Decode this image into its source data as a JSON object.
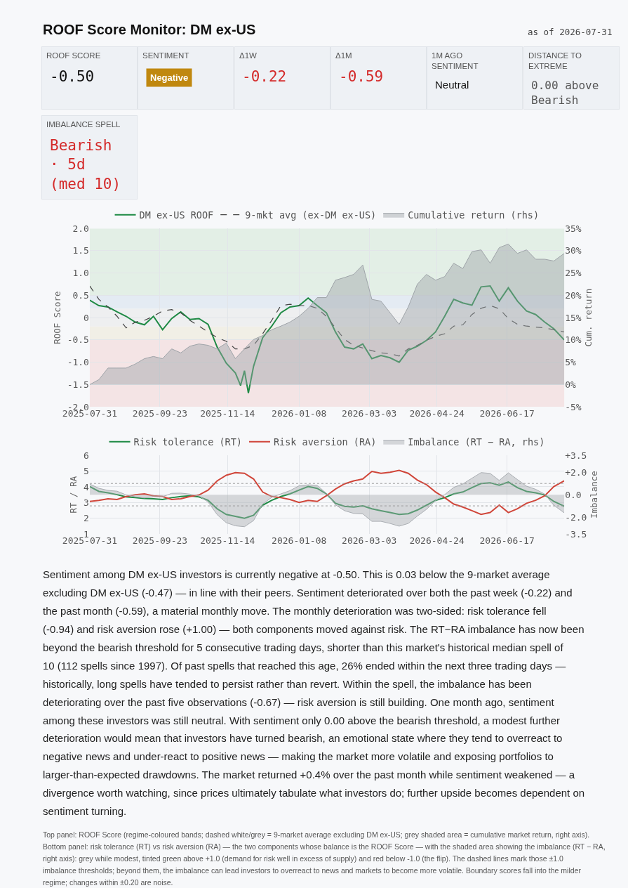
{
  "chart_data": [
    {
      "type": "other",
      "title": "ROOF Score Monitor: DM ex-US",
      "subtitle": "as of 2026-07-31",
      "annotations": [
        "ROOF SCORE",
        "-0.50",
        "SENTIMENT",
        "Negative",
        "Δ1W",
        "-0.22",
        "Δ1M",
        "-0.59",
        "1M AGO SENTIMENT",
        "Neutral",
        "DISTANCE TO EXTREME",
        "0.00 above Bearish",
        "IMBALANCE SPELL",
        "Bearish · 5d (med 10)"
      ]
    },
    {
      "type": "line",
      "legend": "top",
      "grid": true,
      "ylabel": "ROOF Score",
      "y2label": "Cum. return",
      "x": [
        "2025-07-31",
        "2025-08-07",
        "2025-08-14",
        "2025-08-21",
        "2025-08-28",
        "2025-09-04",
        "2025-09-11",
        "2025-09-18",
        "2025-09-25",
        "2025-10-02",
        "2025-10-09",
        "2025-10-16",
        "2025-10-23",
        "2025-10-30",
        "2025-11-06",
        "2025-11-13",
        "2025-11-20",
        "2025-11-27",
        "2025-12-04",
        "2025-12-11",
        "2025-12-18",
        "2025-12-25",
        "2026-01-01",
        "2026-01-08",
        "2026-01-15",
        "2026-01-22",
        "2026-01-29",
        "2026-02-05",
        "2026-02-12",
        "2026-02-19",
        "2026-02-26",
        "2026-03-05",
        "2026-03-12",
        "2026-03-19",
        "2026-03-26",
        "2026-04-02",
        "2026-04-09",
        "2026-04-16",
        "2026-04-23",
        "2026-04-30",
        "2026-05-07",
        "2026-05-14",
        "2026-05-21",
        "2026-05-28",
        "2026-06-04",
        "2026-06-11",
        "2026-06-18",
        "2026-06-25",
        "2026-07-02",
        "2026-07-09",
        "2026-07-16",
        "2026-07-23",
        "2026-07-31"
      ],
      "xlim": [
        "2025-07-31",
        "2026-07-31"
      ],
      "xticks": [
        "2025-07-31",
        "2025-09-23",
        "2025-11-14",
        "2026-01-08",
        "2026-03-03",
        "2026-04-24",
        "2026-06-17"
      ],
      "ylim": [
        -2.0,
        2.0
      ],
      "yticks": [
        {
          "value": 2.0,
          "label": "2.0"
        },
        1.5,
        {
          "value": 1.0,
          "label": "1.0"
        },
        0.5,
        0,
        -0.5,
        {
          "value": -1.0,
          "label": "-1.0"
        },
        -1.5,
        {
          "value": -2.0,
          "label": "-2.0"
        }
      ],
      "y2lim": [
        -5,
        35
      ],
      "y2ticks": [
        {
          "value": 35,
          "label": "35%"
        },
        {
          "value": 30,
          "label": "30%"
        },
        {
          "value": 25,
          "label": "25%"
        },
        {
          "value": 20,
          "label": "20%"
        },
        {
          "value": 15,
          "label": "15%"
        },
        {
          "value": 10,
          "label": "10%"
        },
        {
          "value": 5,
          "label": "5%"
        },
        {
          "value": 0,
          "label": "0%"
        },
        {
          "value": -5,
          "label": "-5%"
        }
      ],
      "bands": [
        {
          "axis": "y",
          "from": 0.5,
          "to": 2.0,
          "color": "#e3efe6"
        },
        {
          "axis": "y",
          "from": 0.2,
          "to": 0.5,
          "color": "#e4ebf3"
        },
        {
          "axis": "y",
          "from": -0.2,
          "to": 0.2,
          "color": "#eeeff0"
        },
        {
          "axis": "y",
          "from": -0.5,
          "to": -0.2,
          "color": "#f1efe6"
        },
        {
          "axis": "y",
          "from": -2.0,
          "to": -0.5,
          "color": "#f4e4e5"
        }
      ],
      "series": [
        {
          "name": "DM ex-US ROOF",
          "color": "#1e8a44",
          "x": [
            "2025-07-31",
            "2025-08-07",
            "2025-08-14",
            "2025-08-21",
            "2025-08-28",
            "2025-09-04",
            "2025-09-11",
            "2025-09-18",
            "2025-09-25",
            "2025-10-02",
            "2025-10-09",
            "2025-10-16",
            "2025-10-23",
            "2025-10-30",
            "2025-11-06",
            "2025-11-13",
            "2025-11-20",
            "2025-11-24",
            "2025-11-27",
            "2025-11-30",
            "2025-12-04",
            "2025-12-11",
            "2025-12-18",
            "2025-12-25",
            "2026-01-01",
            "2026-01-08",
            "2026-01-15",
            "2026-01-22",
            "2026-01-29",
            "2026-02-05",
            "2026-02-12",
            "2026-02-19",
            "2026-02-26",
            "2026-03-05",
            "2026-03-12",
            "2026-03-19",
            "2026-03-26",
            "2026-04-02",
            "2026-04-09",
            "2026-04-16",
            "2026-04-23",
            "2026-04-30",
            "2026-05-07",
            "2026-05-14",
            "2026-05-21",
            "2026-05-28",
            "2026-06-04",
            "2026-06-11",
            "2026-06-18",
            "2026-06-25",
            "2026-07-02",
            "2026-07-09",
            "2026-07-16",
            "2026-07-23",
            "2026-07-31"
          ],
          "values": [
            0.39,
            0.27,
            0.24,
            0.13,
            0.03,
            -0.1,
            -0.16,
            0.03,
            -0.27,
            -0.02,
            0.13,
            -0.04,
            -0.02,
            -0.15,
            -0.66,
            -1.02,
            -1.24,
            -1.52,
            -1.19,
            -1.69,
            -1.09,
            -0.45,
            -0.19,
            0.11,
            0.24,
            0.27,
            0.44,
            0.27,
            0.11,
            -0.32,
            -0.66,
            -0.7,
            -0.59,
            -0.92,
            -0.85,
            -0.9,
            -1.0,
            -0.73,
            -0.64,
            -0.51,
            -0.32,
            0.03,
            0.41,
            0.33,
            0.28,
            0.69,
            0.71,
            0.37,
            0.67,
            0.37,
            0.15,
            0.07,
            -0.1,
            -0.25,
            -0.5
          ]
        },
        {
          "name": "9-mkt avg (ex-DM ex-US)",
          "color": "#444444",
          "line_style": "dashed",
          "values": [
            0.71,
            0.41,
            0.24,
            0.03,
            -0.23,
            -0.1,
            -0.06,
            0.03,
            0.15,
            0.18,
            0.11,
            -0.06,
            -0.19,
            -0.32,
            -0.45,
            -0.53,
            -0.7,
            -0.7,
            -0.62,
            -0.36,
            -0.06,
            0.27,
            0.3,
            0.27,
            0.27,
            0.21,
            0.03,
            -0.23,
            -0.49,
            -0.62,
            -0.68,
            -0.74,
            -0.79,
            -0.81,
            -0.86,
            -0.7,
            -0.62,
            -0.51,
            -0.42,
            -0.36,
            -0.19,
            -0.16,
            0.07,
            0.21,
            0.27,
            0.2,
            -0.02,
            -0.15,
            -0.19,
            -0.21,
            -0.23,
            -0.27,
            -0.32
          ]
        },
        {
          "name": "Cumulative return (rhs)",
          "color": "#9ea3a8",
          "type": "area",
          "axis": "y2",
          "values": [
            0.0,
            1.1,
            3.7,
            3.7,
            3.7,
            4.6,
            5.8,
            6.3,
            5.8,
            8.0,
            7.1,
            8.6,
            9.1,
            8.8,
            8.0,
            9.3,
            5.8,
            8.0,
            10.1,
            11.0,
            12.3,
            13.1,
            14.0,
            15.3,
            17.1,
            19.5,
            19.5,
            23.4,
            24.0,
            24.7,
            26.8,
            19.1,
            18.7,
            16.1,
            13.5,
            17.4,
            22.5,
            24.7,
            23.4,
            24.2,
            27.2,
            26.0,
            29.8,
            30.2,
            27.2,
            30.7,
            31.5,
            29.4,
            30.2,
            28.1,
            28.1,
            27.7,
            29.4
          ]
        }
      ]
    },
    {
      "type": "line",
      "legend": "top",
      "grid": true,
      "ylabel": "RT / RA",
      "y2label": "Imbalance",
      "x": [
        "2025-07-31",
        "2025-08-07",
        "2025-08-14",
        "2025-08-21",
        "2025-08-28",
        "2025-09-04",
        "2025-09-11",
        "2025-09-18",
        "2025-09-25",
        "2025-10-02",
        "2025-10-09",
        "2025-10-16",
        "2025-10-23",
        "2025-10-30",
        "2025-11-06",
        "2025-11-13",
        "2025-11-20",
        "2025-11-27",
        "2025-12-04",
        "2025-12-11",
        "2025-12-18",
        "2025-12-25",
        "2026-01-01",
        "2026-01-08",
        "2026-01-15",
        "2026-01-22",
        "2026-01-29",
        "2026-02-05",
        "2026-02-12",
        "2026-02-19",
        "2026-02-26",
        "2026-03-05",
        "2026-03-12",
        "2026-03-19",
        "2026-03-26",
        "2026-04-02",
        "2026-04-09",
        "2026-04-16",
        "2026-04-23",
        "2026-04-30",
        "2026-05-07",
        "2026-05-14",
        "2026-05-21",
        "2026-05-28",
        "2026-06-04",
        "2026-06-11",
        "2026-06-18",
        "2026-06-25",
        "2026-07-02",
        "2026-07-09",
        "2026-07-16",
        "2026-07-23",
        "2026-07-31"
      ],
      "xlim": [
        "2025-07-31",
        "2026-07-31"
      ],
      "xticks": [
        "2025-07-31",
        "2025-09-23",
        "2025-11-14",
        "2026-01-08",
        "2026-03-03",
        "2026-04-24",
        "2026-06-17"
      ],
      "ylim": [
        1,
        6
      ],
      "yticks": [
        1,
        2,
        3,
        4,
        5,
        6
      ],
      "y2lim": [
        -3.5,
        3.5
      ],
      "y2ticks": [
        {
          "value": 3.5,
          "label": "+3.5"
        },
        {
          "value": 2.0,
          "label": "+2.0"
        },
        {
          "value": 0.0,
          "label": "0.0"
        },
        {
          "value": -2.0,
          "label": "-2.0"
        },
        {
          "value": -3.5,
          "label": "-3.5"
        }
      ],
      "ref_lines": [
        {
          "axis": "y2",
          "value": 1.0,
          "color": "#999999",
          "line_style": "dotted"
        },
        {
          "axis": "y2",
          "value": -1.0,
          "color": "#999999",
          "line_style": "dotted"
        }
      ],
      "series": [
        {
          "name": "Imbalance (RT − RA, rhs)",
          "color": "#a9adb2",
          "type": "area",
          "axis": "y2",
          "values": [
            0.95,
            0.57,
            0.38,
            0.31,
            -0.02,
            -0.19,
            -0.29,
            -0.19,
            -0.19,
            0.12,
            0.14,
            0.05,
            -0.12,
            -0.65,
            -1.78,
            -2.5,
            -2.78,
            -2.86,
            -2.31,
            -0.84,
            -0.24,
            0.07,
            0.36,
            0.79,
            0.88,
            0.83,
            0.12,
            -0.91,
            -1.43,
            -1.67,
            -1.71,
            -2.38,
            -2.38,
            -2.57,
            -2.81,
            -2.57,
            -1.91,
            -1.31,
            -0.53,
            0.0,
            0.65,
            0.96,
            1.47,
            1.97,
            1.9,
            1.27,
            1.95,
            1.35,
            0.76,
            0.48,
            0.05,
            -0.95,
            -1.62
          ]
        },
        {
          "name": "Risk tolerance (RT)",
          "color": "#1e8a44",
          "values": [
            4.02,
            3.71,
            3.62,
            3.5,
            3.36,
            3.31,
            3.26,
            3.24,
            3.19,
            3.31,
            3.38,
            3.43,
            3.36,
            3.14,
            2.6,
            2.24,
            2.12,
            2.0,
            2.19,
            2.83,
            3.14,
            3.38,
            3.55,
            3.79,
            4.02,
            3.9,
            3.55,
            2.95,
            2.76,
            2.71,
            2.79,
            2.6,
            2.48,
            2.36,
            2.24,
            2.29,
            2.52,
            2.83,
            3.14,
            3.31,
            3.55,
            3.67,
            3.95,
            4.21,
            4.26,
            4.1,
            4.31,
            3.95,
            3.71,
            3.62,
            3.48,
            3.07,
            2.76
          ]
        },
        {
          "name": "Risk aversion (RA)",
          "color": "#d0463a",
          "values": [
            3.07,
            3.14,
            3.24,
            3.19,
            3.38,
            3.5,
            3.55,
            3.43,
            3.38,
            3.19,
            3.24,
            3.38,
            3.48,
            3.79,
            4.38,
            4.74,
            4.9,
            4.86,
            4.5,
            3.67,
            3.38,
            3.31,
            3.19,
            3.0,
            3.14,
            3.07,
            3.43,
            3.86,
            4.19,
            4.38,
            4.5,
            4.98,
            4.86,
            4.93,
            5.05,
            4.86,
            4.43,
            4.14,
            3.67,
            3.31,
            2.9,
            2.71,
            2.48,
            2.24,
            2.36,
            2.83,
            2.36,
            2.6,
            2.95,
            3.14,
            3.43,
            4.02,
            4.38
          ]
        }
      ]
    },
    {
      "type": "other",
      "annotations": [
        "Sentiment among DM ex-US investors is currently negative at -0.50. This is 0.03 below the 9-market average excluding DM ex-US (-0.47) — in line with their peers. Sentiment deteriorated over both the past week (-0.22) and the past month (-0.59), a material monthly move. The monthly deterioration was two-sided: risk tolerance fell (-0.94) and risk aversion rose (+1.00) — both components moved against risk. The RT−RA imbalance has now been beyond the bearish threshold for 5 consecutive trading days, shorter than this market's historical median spell of 10 (112 spells since 1997). Of past spells that reached this age, 26% ended within the next three trading days — historically, long spells have tended to persist rather than revert. Within the spell, the imbalance has been deteriorating over the past five observations (-0.67) — risk aversion is still building. One month ago, sentiment among these investors was still neutral. With sentiment only 0.00 above the bearish threshold, a modest further deterioration would mean that investors have turned bearish, an emotional state where they tend to overreact to negative news and under-react to positive news — making the market more volatile and exposing portfolios to larger-than-expected drawdowns. The market returned +0.4% over the past month while sentiment weakened — a divergence worth watching, since prices ultimately tabulate what investors do; further upside becomes dependent on sentiment turning.",
        "Top panel: ROOF Score (regime-coloured bands; dashed white/grey = 9-market average excluding DM ex-US; grey shaded area = cumulative market return, right axis). Bottom panel: risk tolerance (RT) vs risk aversion (RA) — the two components whose balance is the ROOF Score — with the shaded area showing the imbalance (RT − RA, right axis): grey while modest, tinted green above +1.0 (demand for risk well in excess of supply) and red below -1.0 (the flip). The dashed lines mark those ±1.0 imbalance thresholds; beyond them, the imbalance can lead investors to overreact to news and markets to become more volatile. Boundary scores fall into the milder regime; changes within ±0.20 are noise."
      ]
    }
  ]
}
